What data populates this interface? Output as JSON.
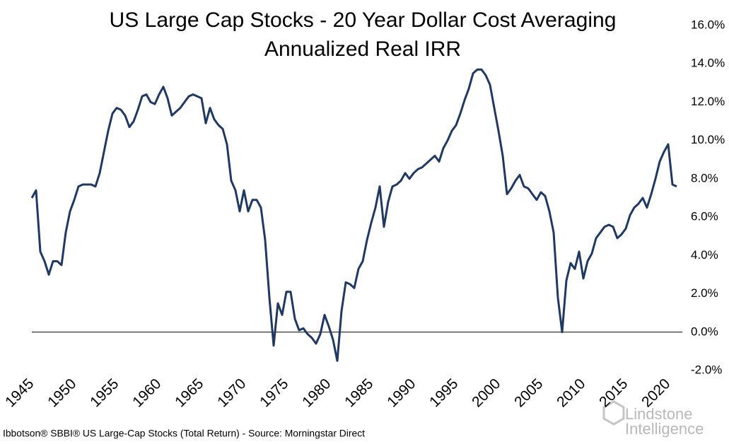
{
  "chart_data": {
    "type": "line",
    "title": "US Large Cap Stocks - 20 Year Dollar Cost Averaging",
    "subtitle": "Annualized Real IRR",
    "source": "Ibbotson® SBBI® US Large-Cap Stocks (Total Return) - Source: Morningstar Direct",
    "logo": [
      "Lindstone",
      "Intelligence"
    ],
    "xlim": [
      1945,
      2021.67
    ],
    "xticks": [
      1945,
      1950,
      1955,
      1960,
      1965,
      1970,
      1975,
      1980,
      1985,
      1990,
      1995,
      2000,
      2005,
      2010,
      2015,
      2020
    ],
    "ylim": [
      -2,
      16
    ],
    "yticks": [
      {
        "value": -2,
        "label": "-2.0%"
      },
      {
        "value": 0,
        "label": "0.0%"
      },
      {
        "value": 2,
        "label": "2.0%"
      },
      {
        "value": 4,
        "label": "4.0%"
      },
      {
        "value": 6,
        "label": "6.0%"
      },
      {
        "value": 8,
        "label": "8.0%"
      },
      {
        "value": 10,
        "label": "10.0%"
      },
      {
        "value": 12,
        "label": "12.0%"
      },
      {
        "value": 14,
        "label": "14.0%"
      },
      {
        "value": 16,
        "label": "16.0%"
      }
    ],
    "y_axis_side": "right",
    "grid": false,
    "zero_line": true,
    "series": [
      {
        "name": "Annualized Real IRR",
        "color": "#1f3864",
        "x": [
          1945,
          1945.5,
          1946,
          1946.5,
          1947,
          1947.5,
          1948,
          1948.5,
          1949,
          1949.5,
          1950,
          1950.5,
          1951,
          1951.5,
          1952,
          1952.5,
          1953,
          1953.5,
          1954,
          1954.5,
          1955,
          1955.5,
          1956,
          1956.5,
          1957,
          1957.5,
          1958,
          1958.5,
          1959,
          1959.5,
          1960,
          1960.5,
          1961,
          1961.5,
          1962,
          1962.5,
          1963,
          1963.5,
          1964,
          1964.5,
          1965,
          1965.5,
          1966,
          1966.5,
          1967,
          1967.5,
          1968,
          1968.5,
          1969,
          1969.5,
          1970,
          1970.5,
          1971,
          1971.5,
          1972,
          1972.5,
          1973,
          1973.5,
          1974,
          1974.5,
          1975,
          1975.5,
          1976,
          1976.5,
          1977,
          1977.5,
          1978,
          1978.5,
          1979,
          1979.5,
          1980,
          1980.5,
          1981,
          1981.5,
          1982,
          1982.5,
          1983,
          1983.5,
          1984,
          1984.5,
          1985,
          1985.5,
          1986,
          1986.5,
          1987,
          1987.5,
          1988,
          1988.5,
          1989,
          1989.5,
          1990,
          1990.5,
          1991,
          1991.5,
          1992,
          1992.5,
          1993,
          1993.5,
          1994,
          1994.5,
          1995,
          1995.5,
          1996,
          1996.5,
          1997,
          1997.5,
          1998,
          1998.5,
          1999,
          1999.5,
          2000,
          2000.5,
          2001,
          2001.5,
          2002,
          2002.5,
          2003,
          2003.5,
          2004,
          2004.5,
          2005,
          2005.5,
          2006,
          2006.5,
          2007,
          2007.5,
          2008,
          2008.5,
          2009,
          2009.5,
          2010,
          2010.5,
          2011,
          2011.5,
          2012,
          2012.5,
          2013,
          2013.5,
          2014,
          2014.5,
          2015,
          2015.5,
          2016,
          2016.5,
          2017,
          2017.5,
          2018,
          2018.5,
          2019,
          2019.5,
          2020,
          2020.5,
          2021
        ],
        "values": [
          7.0,
          7.4,
          4.2,
          3.7,
          3.0,
          3.7,
          3.7,
          3.5,
          5.2,
          6.3,
          6.9,
          7.6,
          7.7,
          7.7,
          7.7,
          7.6,
          8.3,
          9.4,
          10.5,
          11.4,
          11.7,
          11.6,
          11.3,
          10.7,
          11.0,
          11.6,
          12.3,
          12.4,
          12.0,
          11.9,
          12.4,
          12.8,
          12.2,
          11.3,
          11.5,
          11.7,
          12.0,
          12.3,
          12.4,
          12.3,
          12.2,
          10.9,
          11.7,
          11.1,
          10.8,
          10.6,
          9.8,
          7.9,
          7.4,
          6.3,
          7.4,
          6.3,
          6.9,
          6.9,
          6.5,
          4.8,
          1.8,
          -0.7,
          1.5,
          0.9,
          2.1,
          2.1,
          0.7,
          0.1,
          0.2,
          -0.1,
          -0.3,
          -0.6,
          -0.1,
          0.9,
          0.3,
          -0.4,
          -1.5,
          1.1,
          2.6,
          2.5,
          2.3,
          3.3,
          3.7,
          4.8,
          5.7,
          6.5,
          7.6,
          5.5,
          6.8,
          7.6,
          7.7,
          7.9,
          8.3,
          8.0,
          8.3,
          8.5,
          8.6,
          8.8,
          9.0,
          9.2,
          8.9,
          9.6,
          10.0,
          10.5,
          10.8,
          11.4,
          12.1,
          12.7,
          13.5,
          13.7,
          13.7,
          13.4,
          12.9,
          11.7,
          10.5,
          9.2,
          7.2,
          7.5,
          7.9,
          8.2,
          7.6,
          7.5,
          7.2,
          6.9,
          7.3,
          7.1,
          6.3,
          5.2,
          1.8,
          0.0,
          2.7,
          3.6,
          3.3,
          4.2,
          2.8,
          3.7,
          4.1,
          4.9,
          5.2,
          5.5,
          5.6,
          5.5,
          4.9,
          5.1,
          5.4,
          6.1,
          6.5,
          6.7,
          7.0,
          6.5,
          7.2,
          8.0,
          8.9,
          9.4,
          9.8,
          7.7,
          7.6
        ]
      }
    ]
  }
}
